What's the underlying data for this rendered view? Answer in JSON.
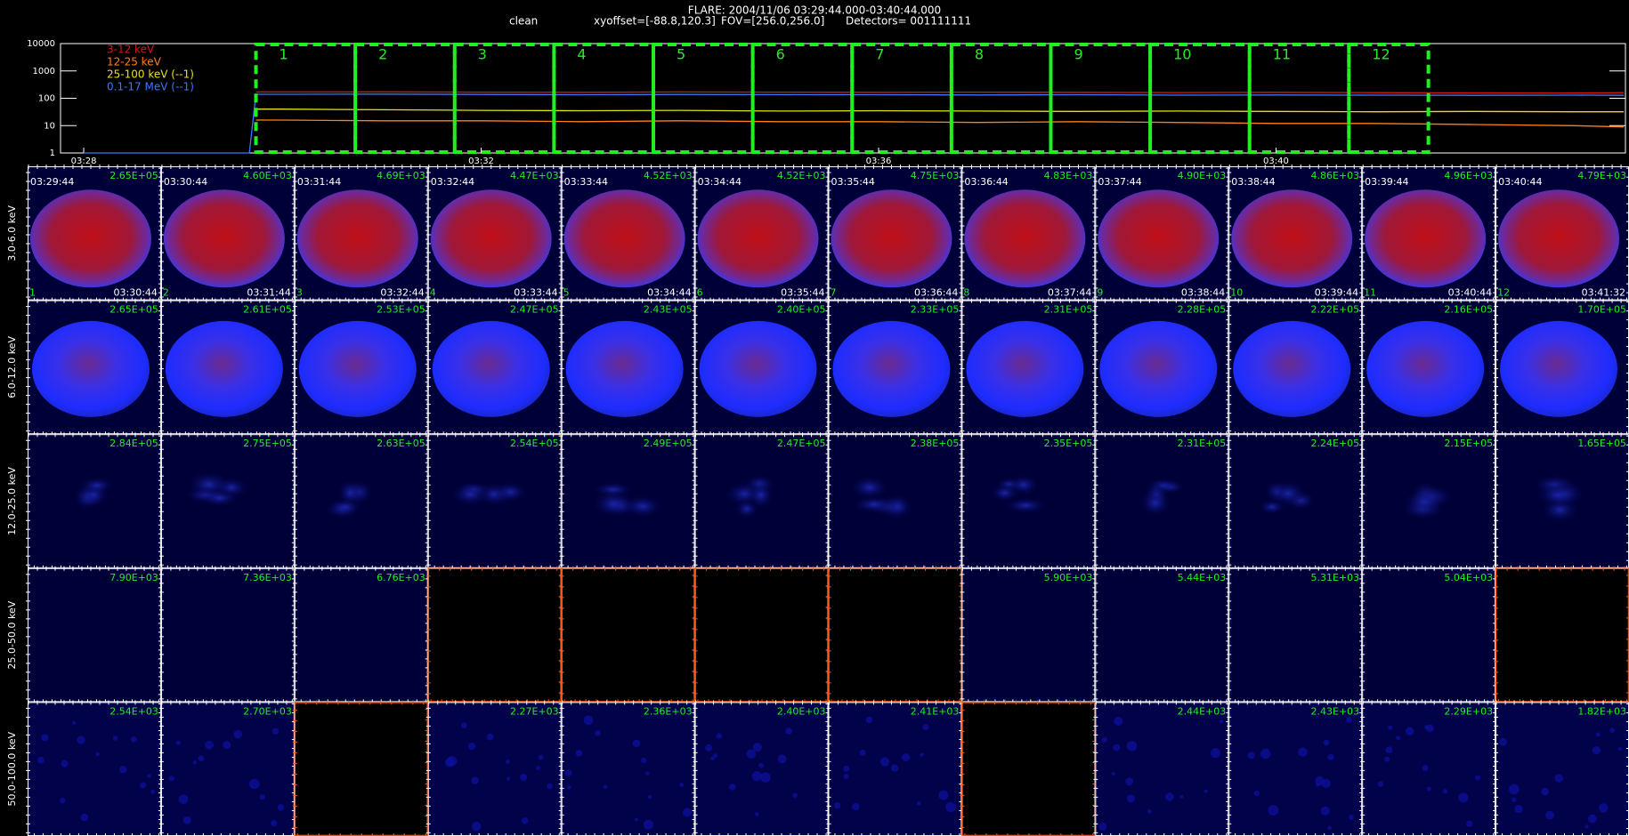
{
  "header": {
    "title": "FLARE: 2004/11/06 03:29:44.000-03:40:44.000",
    "items": [
      "clean",
      "xyoffset=[-88.8,120.3]",
      "FOV=[256.0,256.0]",
      "Detectors= 001111111"
    ]
  },
  "chart_data": {
    "type": "line",
    "log_y": true,
    "x": [
      "03:28:00",
      "03:29:40",
      "03:29:44",
      "03:30:00",
      "03:31:00",
      "03:32:00",
      "03:33:00",
      "03:34:00",
      "03:35:00",
      "03:36:00",
      "03:37:00",
      "03:38:00",
      "03:39:00",
      "03:40:00",
      "03:41:00",
      "03:42:00",
      "03:43:00",
      "03:43:30"
    ],
    "xlim": [
      "03:27:46",
      "03:43:31"
    ],
    "xticks": [
      "03:28",
      "03:32",
      "03:36",
      "03:40"
    ],
    "ylim": [
      1,
      10000
    ],
    "yticks": [
      1,
      10,
      100,
      1000,
      10000
    ],
    "series": [
      {
        "name": "3-12 keV",
        "color": "#d81818",
        "values": [
          null,
          null,
          170,
          170,
          172,
          168,
          165,
          170,
          168,
          165,
          168,
          165,
          162,
          165,
          160,
          158,
          155,
          160
        ]
      },
      {
        "name": "12-25 keV",
        "color": "#ff7f1a",
        "values": [
          null,
          null,
          16,
          16,
          15,
          15,
          14,
          15,
          14,
          14,
          13,
          14,
          13,
          12,
          12,
          11,
          10,
          9
        ]
      },
      {
        "name": "25-100 keV (--1)",
        "color": "#e8e010",
        "values": [
          null,
          null,
          40,
          40,
          38,
          36,
          35,
          36,
          34,
          35,
          34,
          33,
          34,
          33,
          32,
          33,
          32,
          32
        ]
      },
      {
        "name": "0.1-17 MeV (--1)",
        "color": "#3a78ff",
        "values": [
          1,
          1,
          140,
          140,
          142,
          138,
          135,
          138,
          136,
          135,
          132,
          135,
          130,
          132,
          130,
          128,
          130,
          128
        ]
      }
    ]
  },
  "intervals": [
    1,
    2,
    3,
    4,
    5,
    6,
    7,
    8,
    9,
    10,
    11,
    12
  ],
  "grid": {
    "bands": [
      "3.0-6.0 keV",
      "6.0-12.0 keV",
      "12.0-25.0 keV",
      "25.0-50.0 keV",
      "50.0-100.0 keV"
    ],
    "start_times": [
      "03:29:44",
      "03:30:44",
      "03:31:44",
      "03:32:44",
      "03:33:44",
      "03:34:44",
      "03:35:44",
      "03:36:44",
      "03:37:44",
      "03:38:44",
      "03:39:44",
      "03:40:44"
    ],
    "end_times": [
      "03:30:44",
      "03:31:44",
      "03:32:44",
      "03:33:44",
      "03:34:44",
      "03:35:44",
      "03:36:44",
      "03:37:44",
      "03:38:44",
      "03:39:44",
      "03:40:44",
      "03:41:32"
    ],
    "max": [
      [
        "2.65E+05",
        "4.60E+03",
        "4.69E+03",
        "4.47E+03",
        "4.52E+03",
        "4.52E+03",
        "4.75E+03",
        "4.83E+03",
        "4.90E+03",
        "4.86E+03",
        "4.96E+03",
        "4.79E+03"
      ],
      [
        "2.65E+05",
        "2.61E+05",
        "2.53E+05",
        "2.47E+05",
        "2.43E+05",
        "2.40E+05",
        "2.33E+05",
        "2.31E+05",
        "2.28E+05",
        "2.22E+05",
        "2.16E+05",
        "1.70E+05"
      ],
      [
        "2.84E+05",
        "2.75E+05",
        "2.63E+05",
        "2.54E+05",
        "2.49E+05",
        "2.47E+05",
        "2.38E+05",
        "2.35E+05",
        "2.31E+05",
        "2.24E+05",
        "2.15E+05",
        "1.65E+05"
      ],
      [
        "7.90E+03",
        "7.36E+03",
        "6.76E+03",
        null,
        null,
        null,
        null,
        "5.90E+03",
        "5.44E+03",
        "5.31E+03",
        "5.04E+03",
        null
      ],
      [
        "2.54E+03",
        "2.70E+03",
        null,
        "2.27E+03",
        "2.36E+03",
        "2.40E+03",
        "2.41E+03",
        null,
        "2.44E+03",
        "2.43E+03",
        "2.29E+03",
        "1.82E+03"
      ]
    ]
  }
}
